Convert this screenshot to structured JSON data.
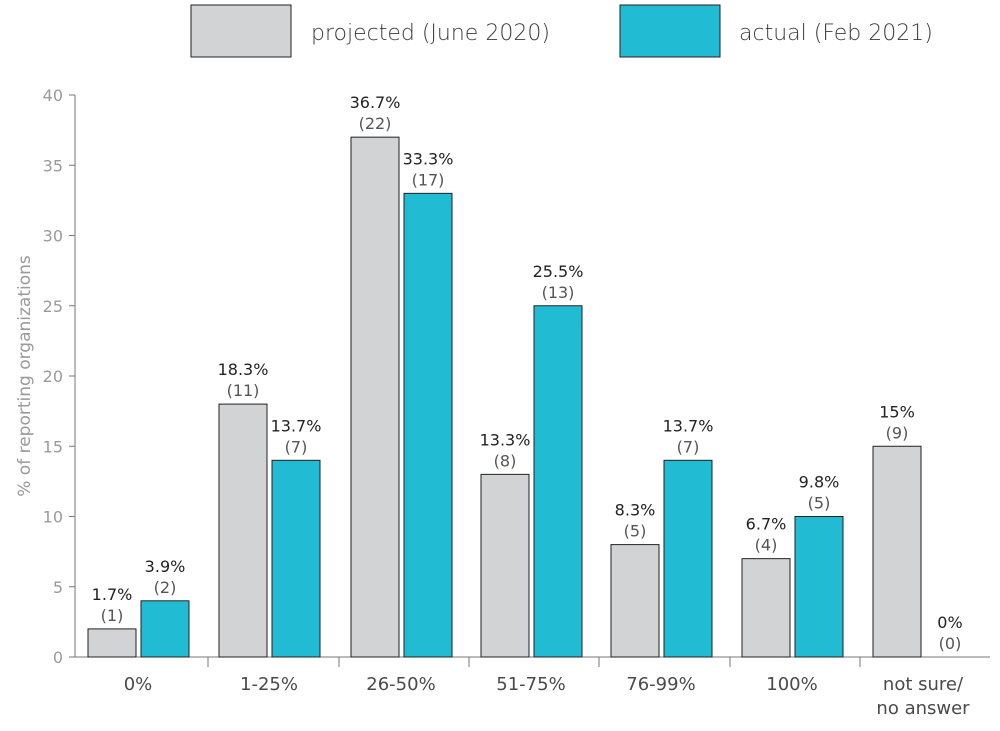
{
  "chart_data": {
    "type": "bar",
    "title": "",
    "xlabel": "",
    "ylabel": "% of reporting organizations",
    "ylim": [
      0,
      40
    ],
    "yticks": [
      0,
      5,
      10,
      15,
      20,
      25,
      30,
      35,
      40
    ],
    "grid": false,
    "legend_position": "top",
    "categories": [
      [
        "0%"
      ],
      [
        "1-25%"
      ],
      [
        "26-50%"
      ],
      [
        "51-75%"
      ],
      [
        "76-99%"
      ],
      [
        "100%"
      ],
      [
        "not sure/",
        "no answer"
      ]
    ],
    "series": [
      {
        "name": "projected (June 2020)",
        "color": "#d2d3d5",
        "values": [
          1.7,
          18.3,
          36.7,
          13.3,
          8.3,
          6.7,
          15
        ],
        "bar_heights": [
          2,
          18,
          37,
          13,
          8,
          7,
          15
        ],
        "pct_labels": [
          "1.7%",
          "18.3%",
          "36.7%",
          "13.3%",
          "8.3%",
          "6.7%",
          "15%"
        ],
        "count_labels": [
          "(1)",
          "(11)",
          "(22)",
          "(8)",
          "(5)",
          "(4)",
          "(9)"
        ]
      },
      {
        "name": "actual (Feb 2021)",
        "color": "#21bcd4",
        "values": [
          3.9,
          13.7,
          33.3,
          25.5,
          13.7,
          9.8,
          0
        ],
        "bar_heights": [
          4,
          14,
          33,
          25,
          14,
          10,
          0
        ],
        "pct_labels": [
          "3.9%",
          "13.7%",
          "33.3%",
          "25.5%",
          "13.7%",
          "9.8%",
          "0%"
        ],
        "count_labels": [
          "(2)",
          "(7)",
          "(17)",
          "(13)",
          "(7)",
          "(5)",
          "(0)"
        ]
      }
    ]
  }
}
